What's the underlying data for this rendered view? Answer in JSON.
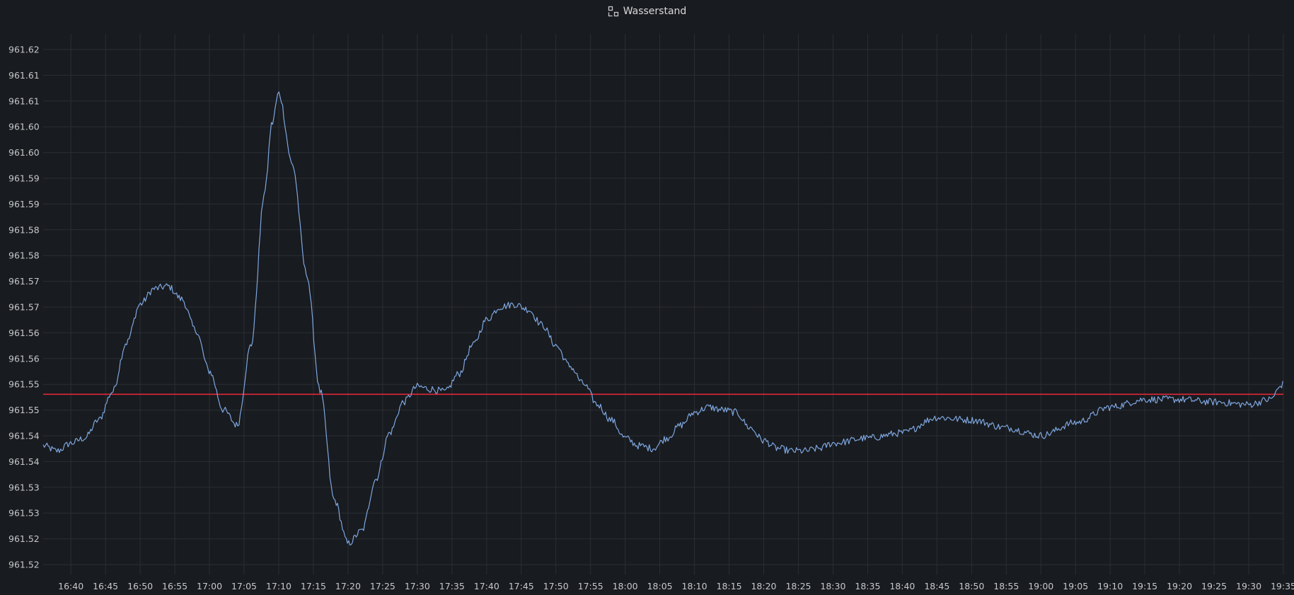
{
  "panel": {
    "title": "Wasserstand",
    "icon": "panel-layout-icon"
  },
  "colors": {
    "background": "#181b1f",
    "series": "#7ea6e0",
    "threshold": "#e0283a",
    "grid": "#2b2e34",
    "text": "#c7c7c9"
  },
  "chart_data": {
    "type": "line",
    "title": "Wasserstand",
    "xlabel": "",
    "ylabel": "",
    "grid": true,
    "legend": "none",
    "y_ticks": [
      "961.62",
      "961.61",
      "961.61",
      "961.60",
      "961.60",
      "961.59",
      "961.59",
      "961.58",
      "961.58",
      "961.57",
      "961.57",
      "961.56",
      "961.56",
      "961.55",
      "961.55",
      "961.54",
      "961.54",
      "961.53",
      "961.53",
      "961.52",
      "961.52"
    ],
    "ylim": [
      961.5175,
      961.6225
    ],
    "x_ticks": [
      "16:40",
      "16:45",
      "16:50",
      "16:55",
      "17:00",
      "17:05",
      "17:10",
      "17:15",
      "17:20",
      "17:25",
      "17:30",
      "17:35",
      "17:40",
      "17:45",
      "17:50",
      "17:55",
      "18:00",
      "18:05",
      "18:10",
      "18:15",
      "18:20",
      "18:25",
      "18:30",
      "18:35",
      "18:40",
      "18:45",
      "18:50",
      "18:55",
      "19:00",
      "19:05",
      "19:10",
      "19:15",
      "19:20",
      "19:25",
      "19:30",
      "19:35"
    ],
    "xlim": [
      "16:36",
      "19:35"
    ],
    "threshold": 961.5525,
    "series": [
      {
        "x": [
          "16:36",
          "16:38",
          "16:40",
          "16:42",
          "16:44",
          "16:46",
          "16:48",
          "16:50",
          "16:52",
          "16:54",
          "16:56",
          "16:58",
          "17:00",
          "17:02",
          "17:04",
          "17:06",
          "17:08",
          "17:09",
          "17:10",
          "17:12",
          "17:14",
          "17:16",
          "17:18",
          "17:20",
          "17:22",
          "17:24",
          "17:26",
          "17:28",
          "17:30",
          "17:32",
          "17:34",
          "17:36",
          "17:38",
          "17:40",
          "17:42",
          "17:44",
          "17:46",
          "17:48",
          "17:50",
          "17:52",
          "17:54",
          "17:56",
          "17:58",
          "18:00",
          "18:02",
          "18:04",
          "18:06",
          "18:08",
          "18:10",
          "18:12",
          "18:14",
          "18:16",
          "18:18",
          "18:20",
          "18:22",
          "18:24",
          "18:26",
          "18:28",
          "18:30",
          "18:35",
          "18:40",
          "18:45",
          "18:50",
          "18:55",
          "19:00",
          "19:05",
          "19:10",
          "19:15",
          "19:20",
          "19:25",
          "19:30",
          "19:33",
          "19:35"
        ],
        "values": [
          961.5425,
          961.5415,
          961.543,
          961.544,
          961.5475,
          961.553,
          961.5625,
          961.57,
          961.573,
          961.5735,
          961.571,
          961.565,
          961.557,
          961.5495,
          961.5465,
          961.562,
          961.592,
          961.605,
          961.611,
          961.597,
          961.576,
          961.553,
          961.532,
          961.5235,
          961.526,
          961.536,
          961.545,
          961.551,
          961.554,
          961.5535,
          961.553,
          961.5565,
          961.562,
          961.567,
          961.5695,
          961.57,
          961.569,
          961.566,
          961.562,
          961.558,
          961.5545,
          961.5505,
          961.5475,
          961.544,
          961.5425,
          961.542,
          961.544,
          961.5465,
          961.549,
          961.55,
          961.5495,
          961.549,
          961.546,
          961.5435,
          961.542,
          961.5415,
          961.5415,
          961.542,
          961.543,
          961.544,
          961.545,
          961.548,
          961.5475,
          961.546,
          961.5445,
          961.547,
          961.55,
          961.5515,
          961.5515,
          961.551,
          961.5505,
          961.5515,
          961.5545
        ]
      }
    ]
  }
}
